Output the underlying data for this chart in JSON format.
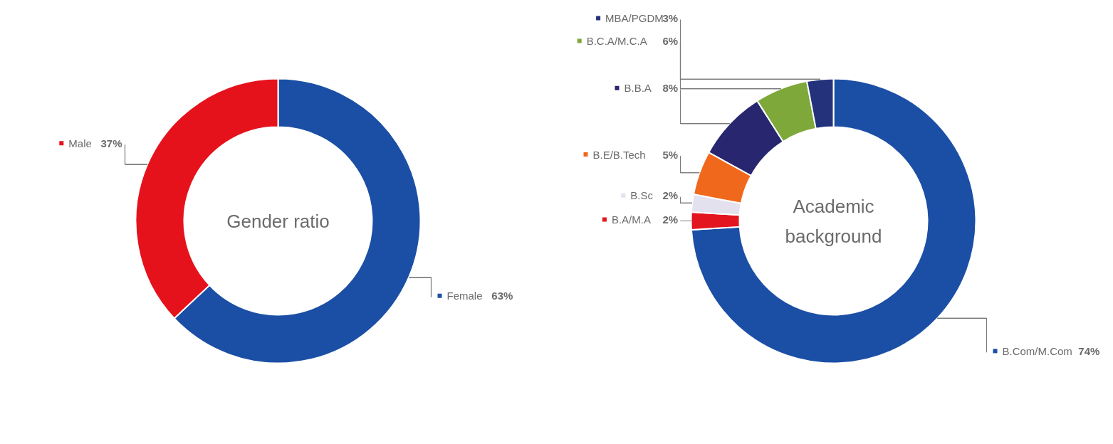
{
  "chart_data": [
    {
      "type": "donut",
      "title": "Gender ratio",
      "categories": [
        "Female",
        "Male"
      ],
      "values": [
        63,
        37
      ],
      "colors": [
        "#1b4fa5",
        "#e5121c"
      ],
      "value_labels": [
        "63%",
        "37%"
      ],
      "legend": "right"
    },
    {
      "type": "donut",
      "title": "Academic background",
      "categories": [
        "B.Com/M.Com",
        "B.A/M.A",
        "B.Sc",
        "B.E/B.Tech",
        "B.B.A",
        "B.C.A/M.C.A",
        "MBA/PGDM"
      ],
      "values": [
        74,
        2,
        2,
        5,
        8,
        6,
        3
      ],
      "colors": [
        "#1b4fa5",
        "#e3151f",
        "#e4e1ef",
        "#f0681c",
        "#27266f",
        "#7ea83a",
        "#24327c"
      ],
      "value_labels": [
        "74%",
        "2%",
        "2%",
        "5%",
        "8%",
        "6%",
        "3%"
      ],
      "legend": "left"
    }
  ]
}
